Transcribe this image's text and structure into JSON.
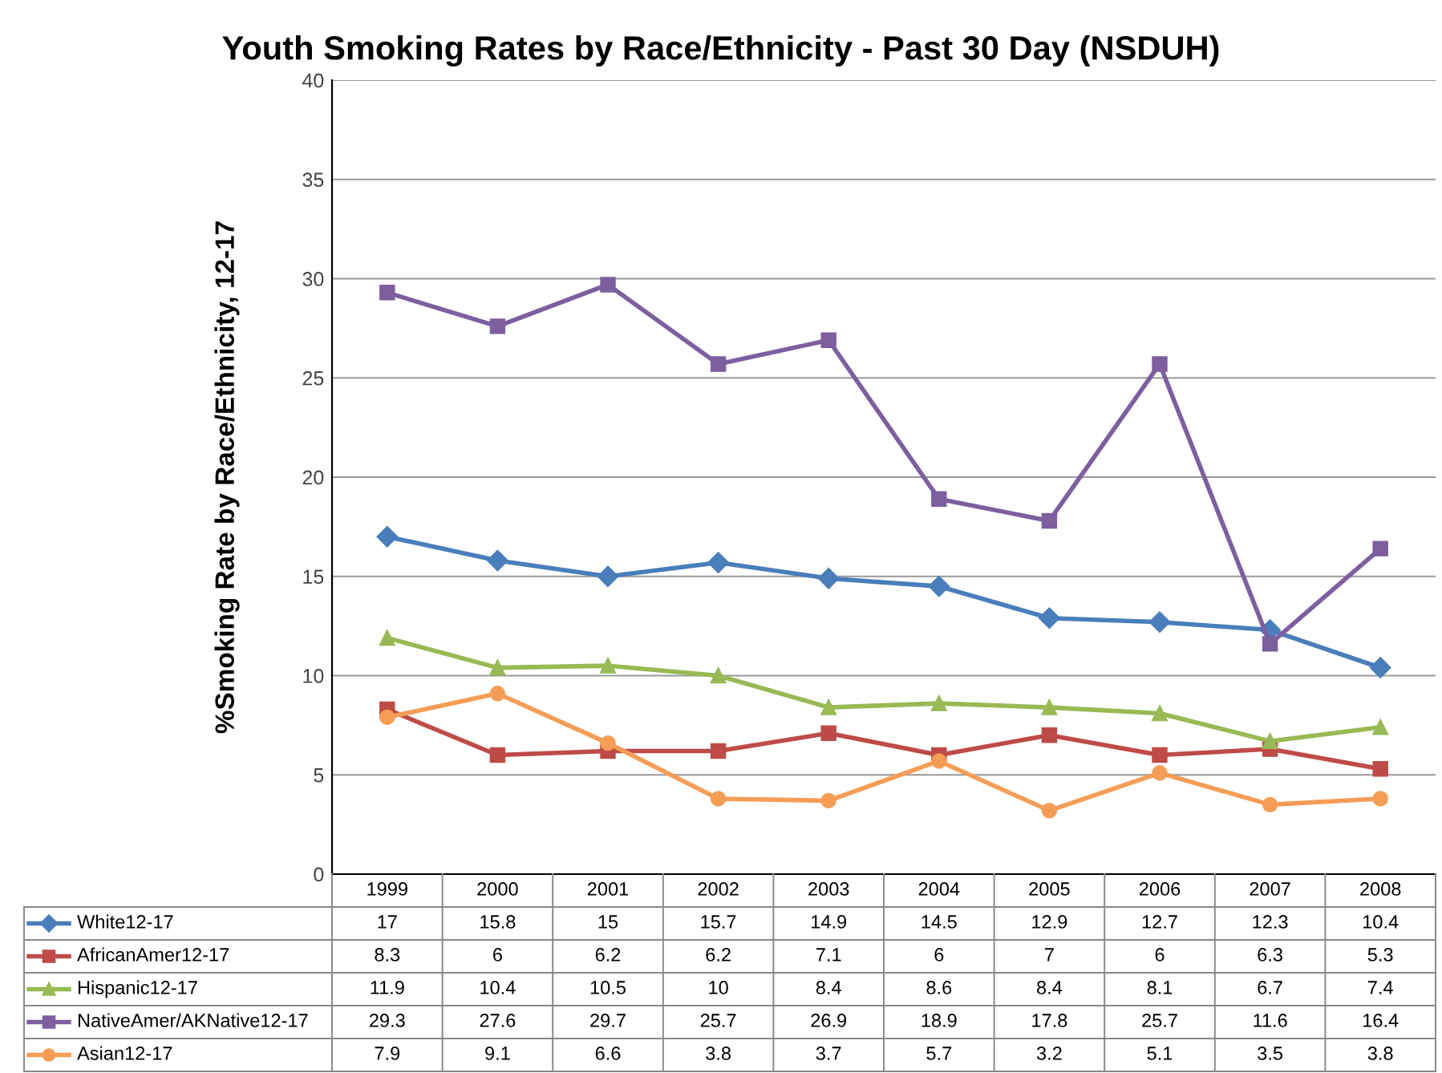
{
  "chart_data": {
    "type": "line",
    "title": "Youth Smoking Rates by Race/Ethnicity - Past 30 Day (NSDUH)",
    "ylabel": "%Smoking Rate by Race/Ethnicity, 12-17",
    "categories": [
      "1999",
      "2000",
      "2001",
      "2002",
      "2003",
      "2004",
      "2005",
      "2006",
      "2007",
      "2008"
    ],
    "series": [
      {
        "name": "White12-17",
        "color": "#4a7ebb",
        "marker": "diamond",
        "values": [
          17,
          15.8,
          15,
          15.7,
          14.9,
          14.5,
          12.9,
          12.7,
          12.3,
          10.4
        ]
      },
      {
        "name": "AfricanAmer12-17",
        "color": "#be4b48",
        "marker": "square",
        "values": [
          8.3,
          6,
          6.2,
          6.2,
          7.1,
          6,
          7,
          6,
          6.3,
          5.3
        ]
      },
      {
        "name": "Hispanic12-17",
        "color": "#98b954",
        "marker": "triangle",
        "values": [
          11.9,
          10.4,
          10.5,
          10,
          8.4,
          8.6,
          8.4,
          8.1,
          6.7,
          7.4
        ]
      },
      {
        "name": "NativeAmer/AKNative12-17",
        "color": "#7d5fa0",
        "marker": "square",
        "values": [
          29.3,
          27.6,
          29.7,
          25.7,
          26.9,
          18.9,
          17.8,
          25.7,
          11.6,
          16.4
        ]
      },
      {
        "name": "Asian12-17",
        "color": "#f59d56",
        "marker": "circle",
        "values": [
          7.9,
          9.1,
          6.6,
          3.8,
          3.7,
          5.7,
          3.2,
          5.1,
          3.5,
          3.8
        ]
      }
    ],
    "ylim": [
      0,
      40
    ],
    "yticks": [
      0,
      5,
      10,
      15,
      20,
      25,
      30,
      35,
      40
    ],
    "grid": "y",
    "legend": "bottom left",
    "data_labels": true,
    "line_style": "solid"
  }
}
